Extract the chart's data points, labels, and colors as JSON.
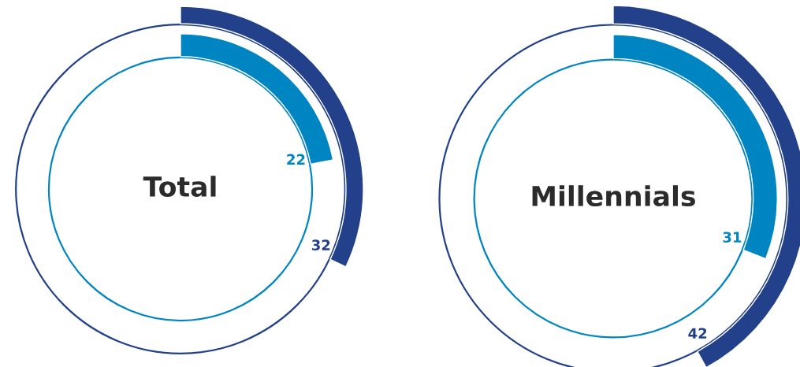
{
  "chart_data": [
    {
      "type": "donut",
      "title": "Total",
      "data_labels": true,
      "series": [
        {
          "color": "#0085c3",
          "values": [
            22
          ]
        },
        {
          "color": "#22418a",
          "values": [
            32
          ]
        }
      ]
    },
    {
      "type": "donut",
      "title": "Millennials",
      "data_labels": true,
      "series": [
        {
          "color": "#0085c3",
          "values": [
            31
          ]
        },
        {
          "color": "#22418a",
          "values": [
            42
          ]
        }
      ]
    }
  ]
}
